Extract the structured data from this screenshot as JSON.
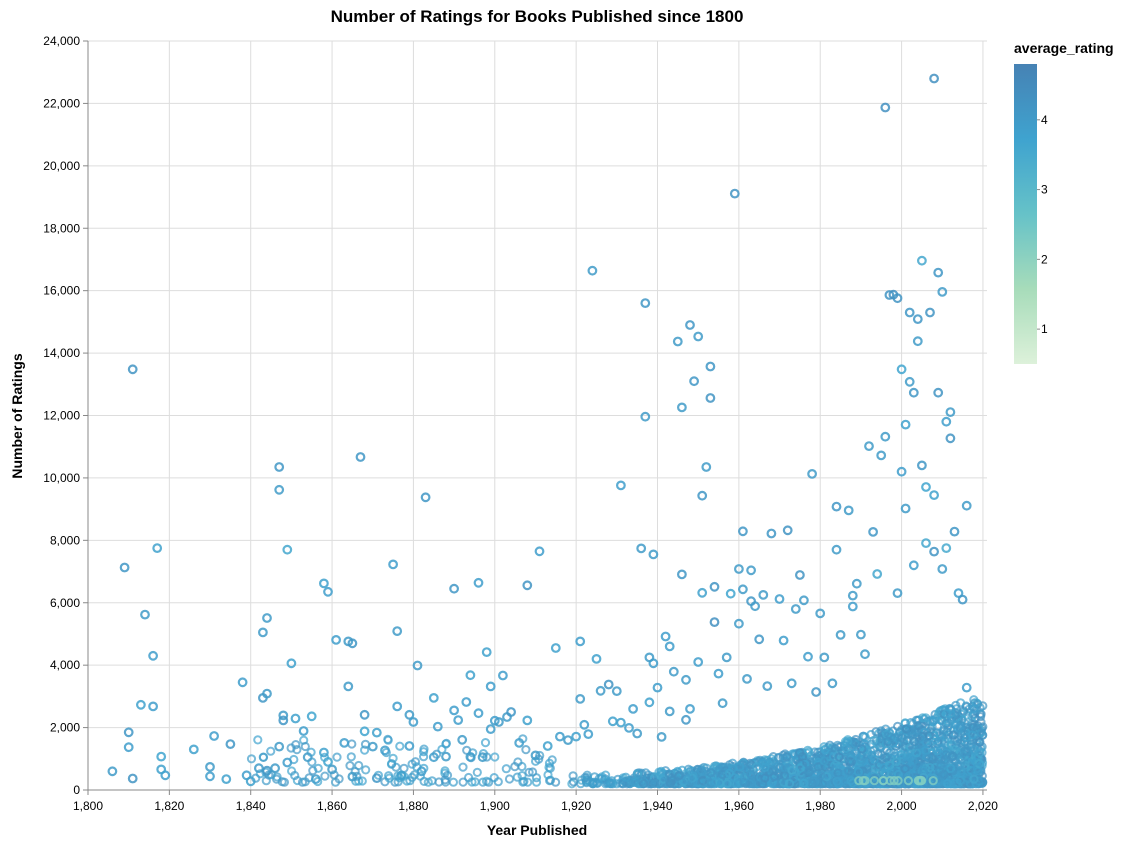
{
  "chart_data": {
    "type": "scatter",
    "title": "Number of Ratings for Books Published since 1800",
    "xlabel": "Year Published",
    "ylabel": "Number of Ratings",
    "xlim": [
      1800,
      2021
    ],
    "ylim": [
      0,
      24000
    ],
    "x_ticks": [
      1800,
      1820,
      1840,
      1860,
      1880,
      1900,
      1920,
      1940,
      1960,
      1980,
      2000,
      2020
    ],
    "x_tick_labels": [
      "1,800",
      "1,820",
      "1,840",
      "1,860",
      "1,880",
      "1,900",
      "1,920",
      "1,940",
      "1,960",
      "1,980",
      "2,000",
      "2,020"
    ],
    "y_ticks": [
      0,
      2000,
      4000,
      6000,
      8000,
      10000,
      12000,
      14000,
      16000,
      18000,
      20000,
      22000,
      24000
    ],
    "y_tick_labels": [
      "0",
      "2,000",
      "4,000",
      "6,000",
      "8,000",
      "10,000",
      "12,000",
      "14,000",
      "16,000",
      "18,000",
      "20,000",
      "22,000",
      "24,000"
    ],
    "grid": true,
    "marker": "hollow-circle",
    "color_field": "average_rating",
    "legend": {
      "title": "average_rating",
      "placement": "right",
      "domain": [
        0.5,
        4.8
      ],
      "ticks": [
        1,
        2,
        3,
        4
      ],
      "tick_labels": [
        "1",
        "2",
        "3",
        "4"
      ],
      "colors": [
        "#ddf1da",
        "#a7dcba",
        "#66c2c8",
        "#3fa3cf",
        "#4682b4"
      ]
    },
    "points": [
      {
        "x": 1806,
        "y": 600,
        "c": 4.0
      },
      {
        "x": 1809,
        "y": 7130,
        "c": 4.1
      },
      {
        "x": 1810,
        "y": 1850,
        "c": 4.1
      },
      {
        "x": 1810,
        "y": 1370,
        "c": 3.9
      },
      {
        "x": 1811,
        "y": 370,
        "c": 4.2
      },
      {
        "x": 1811,
        "y": 13480,
        "c": 4.2
      },
      {
        "x": 1813,
        "y": 2730,
        "c": 3.8
      },
      {
        "x": 1814,
        "y": 5620,
        "c": 4.0
      },
      {
        "x": 1816,
        "y": 4300,
        "c": 3.9
      },
      {
        "x": 1816,
        "y": 2680,
        "c": 3.9
      },
      {
        "x": 1817,
        "y": 7750,
        "c": 3.8
      },
      {
        "x": 1818,
        "y": 1070,
        "c": 3.7
      },
      {
        "x": 1819,
        "y": 470,
        "c": 3.9
      },
      {
        "x": 1818,
        "y": 660,
        "c": 3.8
      },
      {
        "x": 1826,
        "y": 1300,
        "c": 3.8
      },
      {
        "x": 1830,
        "y": 440,
        "c": 3.9
      },
      {
        "x": 1831,
        "y": 1730,
        "c": 3.9
      },
      {
        "x": 1830,
        "y": 740,
        "c": 4.0
      },
      {
        "x": 1834,
        "y": 350,
        "c": 3.8
      },
      {
        "x": 1835,
        "y": 1470,
        "c": 4.1
      },
      {
        "x": 1838,
        "y": 3450,
        "c": 3.9
      },
      {
        "x": 1839,
        "y": 470,
        "c": 3.9
      },
      {
        "x": 1840,
        "y": 280,
        "c": 3.8
      },
      {
        "x": 1842,
        "y": 700,
        "c": 4.0
      },
      {
        "x": 1843,
        "y": 5050,
        "c": 4.0
      },
      {
        "x": 1843,
        "y": 2950,
        "c": 4.1
      },
      {
        "x": 1844,
        "y": 3090,
        "c": 4.0
      },
      {
        "x": 1844,
        "y": 5510,
        "c": 4.0
      },
      {
        "x": 1844,
        "y": 620,
        "c": 4.1
      },
      {
        "x": 1846,
        "y": 700,
        "c": 4.0
      },
      {
        "x": 1847,
        "y": 9620,
        "c": 4.0
      },
      {
        "x": 1847,
        "y": 10350,
        "c": 4.1
      },
      {
        "x": 1847,
        "y": 1390,
        "c": 4.0
      },
      {
        "x": 1848,
        "y": 2390,
        "c": 4.0
      },
      {
        "x": 1848,
        "y": 2230,
        "c": 4.1
      },
      {
        "x": 1849,
        "y": 7700,
        "c": 3.6
      },
      {
        "x": 1849,
        "y": 880,
        "c": 3.9
      },
      {
        "x": 1850,
        "y": 4060,
        "c": 3.8
      },
      {
        "x": 1851,
        "y": 2290,
        "c": 3.8
      },
      {
        "x": 1853,
        "y": 1890,
        "c": 3.9
      },
      {
        "x": 1854,
        "y": 1050,
        "c": 4.0
      },
      {
        "x": 1855,
        "y": 2360,
        "c": 3.7
      },
      {
        "x": 1856,
        "y": 350,
        "c": 3.9
      },
      {
        "x": 1858,
        "y": 1200,
        "c": 3.8
      },
      {
        "x": 1858,
        "y": 6620,
        "c": 3.8
      },
      {
        "x": 1859,
        "y": 6350,
        "c": 3.9
      },
      {
        "x": 1859,
        "y": 900,
        "c": 3.7
      },
      {
        "x": 1860,
        "y": 660,
        "c": 4.0
      },
      {
        "x": 1861,
        "y": 4810,
        "c": 3.9
      },
      {
        "x": 1863,
        "y": 1510,
        "c": 3.9
      },
      {
        "x": 1864,
        "y": 4760,
        "c": 4.0
      },
      {
        "x": 1864,
        "y": 3320,
        "c": 4.0
      },
      {
        "x": 1865,
        "y": 4700,
        "c": 4.1
      },
      {
        "x": 1865,
        "y": 430,
        "c": 4.0
      },
      {
        "x": 1867,
        "y": 10670,
        "c": 4.1
      },
      {
        "x": 1868,
        "y": 2410,
        "c": 4.1
      },
      {
        "x": 1868,
        "y": 1880,
        "c": 3.7
      },
      {
        "x": 1870,
        "y": 1390,
        "c": 4.0
      },
      {
        "x": 1871,
        "y": 1840,
        "c": 3.8
      },
      {
        "x": 1871,
        "y": 380,
        "c": 4.1
      },
      {
        "x": 1873,
        "y": 1270,
        "c": 3.9
      },
      {
        "x": 1875,
        "y": 7230,
        "c": 3.9
      },
      {
        "x": 1876,
        "y": 5090,
        "c": 4.0
      },
      {
        "x": 1876,
        "y": 2680,
        "c": 3.9
      },
      {
        "x": 1877,
        "y": 460,
        "c": 3.8
      },
      {
        "x": 1879,
        "y": 2410,
        "c": 4.0
      },
      {
        "x": 1879,
        "y": 1410,
        "c": 3.9
      },
      {
        "x": 1880,
        "y": 2180,
        "c": 3.9
      },
      {
        "x": 1881,
        "y": 3990,
        "c": 4.0
      },
      {
        "x": 1882,
        "y": 600,
        "c": 3.9
      },
      {
        "x": 1883,
        "y": 9380,
        "c": 4.1
      },
      {
        "x": 1885,
        "y": 2950,
        "c": 3.8
      },
      {
        "x": 1885,
        "y": 1050,
        "c": 3.9
      },
      {
        "x": 1886,
        "y": 2030,
        "c": 3.9
      },
      {
        "x": 1888,
        "y": 1070,
        "c": 4.0
      },
      {
        "x": 1890,
        "y": 2550,
        "c": 3.9
      },
      {
        "x": 1890,
        "y": 6450,
        "c": 4.1
      },
      {
        "x": 1891,
        "y": 2240,
        "c": 3.9
      },
      {
        "x": 1892,
        "y": 1610,
        "c": 4.0
      },
      {
        "x": 1893,
        "y": 2820,
        "c": 3.9
      },
      {
        "x": 1894,
        "y": 1060,
        "c": 3.9
      },
      {
        "x": 1894,
        "y": 3680,
        "c": 3.8
      },
      {
        "x": 1896,
        "y": 6640,
        "c": 3.9
      },
      {
        "x": 1896,
        "y": 2460,
        "c": 3.9
      },
      {
        "x": 1897,
        "y": 1050,
        "c": 4.0
      },
      {
        "x": 1898,
        "y": 4420,
        "c": 3.8
      },
      {
        "x": 1899,
        "y": 3320,
        "c": 3.9
      },
      {
        "x": 1899,
        "y": 1950,
        "c": 3.9
      },
      {
        "x": 1900,
        "y": 2220,
        "c": 3.9
      },
      {
        "x": 1901,
        "y": 2180,
        "c": 4.0
      },
      {
        "x": 1902,
        "y": 3670,
        "c": 3.9
      },
      {
        "x": 1903,
        "y": 2340,
        "c": 4.0
      },
      {
        "x": 1904,
        "y": 2500,
        "c": 4.1
      },
      {
        "x": 1906,
        "y": 1510,
        "c": 3.9
      },
      {
        "x": 1908,
        "y": 6560,
        "c": 4.2
      },
      {
        "x": 1908,
        "y": 2230,
        "c": 3.8
      },
      {
        "x": 1910,
        "y": 1110,
        "c": 4.0
      },
      {
        "x": 1911,
        "y": 7650,
        "c": 3.9
      },
      {
        "x": 1913,
        "y": 1410,
        "c": 3.8
      },
      {
        "x": 1915,
        "y": 4550,
        "c": 3.8
      },
      {
        "x": 1916,
        "y": 1710,
        "c": 3.9
      },
      {
        "x": 1918,
        "y": 1600,
        "c": 4.0
      },
      {
        "x": 1920,
        "y": 1710,
        "c": 3.8
      },
      {
        "x": 1921,
        "y": 2920,
        "c": 4.0
      },
      {
        "x": 1921,
        "y": 4760,
        "c": 3.9
      },
      {
        "x": 1922,
        "y": 2090,
        "c": 3.9
      },
      {
        "x": 1923,
        "y": 1790,
        "c": 3.9
      },
      {
        "x": 1924,
        "y": 16640,
        "c": 4.0
      },
      {
        "x": 1925,
        "y": 4200,
        "c": 3.8
      },
      {
        "x": 1926,
        "y": 3180,
        "c": 4.0
      },
      {
        "x": 1928,
        "y": 3380,
        "c": 4.2
      },
      {
        "x": 1929,
        "y": 2200,
        "c": 3.8
      },
      {
        "x": 1930,
        "y": 3170,
        "c": 4.0
      },
      {
        "x": 1931,
        "y": 9760,
        "c": 3.9
      },
      {
        "x": 1931,
        "y": 2160,
        "c": 3.8
      },
      {
        "x": 1933,
        "y": 1990,
        "c": 3.9
      },
      {
        "x": 1934,
        "y": 2600,
        "c": 3.9
      },
      {
        "x": 1935,
        "y": 1810,
        "c": 4.0
      },
      {
        "x": 1936,
        "y": 7740,
        "c": 4.0
      },
      {
        "x": 1937,
        "y": 15600,
        "c": 4.1
      },
      {
        "x": 1937,
        "y": 11960,
        "c": 4.0
      },
      {
        "x": 1938,
        "y": 4250,
        "c": 4.0
      },
      {
        "x": 1938,
        "y": 2810,
        "c": 3.8
      },
      {
        "x": 1939,
        "y": 7550,
        "c": 4.0
      },
      {
        "x": 1939,
        "y": 4060,
        "c": 3.9
      },
      {
        "x": 1940,
        "y": 3280,
        "c": 3.9
      },
      {
        "x": 1941,
        "y": 1700,
        "c": 4.0
      },
      {
        "x": 1942,
        "y": 4920,
        "c": 3.9
      },
      {
        "x": 1943,
        "y": 4600,
        "c": 3.9
      },
      {
        "x": 1943,
        "y": 2520,
        "c": 4.0
      },
      {
        "x": 1944,
        "y": 3790,
        "c": 4.0
      },
      {
        "x": 1945,
        "y": 14370,
        "c": 4.0
      },
      {
        "x": 1946,
        "y": 6910,
        "c": 4.1
      },
      {
        "x": 1946,
        "y": 12260,
        "c": 4.0
      },
      {
        "x": 1947,
        "y": 3530,
        "c": 4.0
      },
      {
        "x": 1947,
        "y": 2250,
        "c": 4.1
      },
      {
        "x": 1948,
        "y": 14900,
        "c": 4.1
      },
      {
        "x": 1948,
        "y": 2600,
        "c": 3.9
      },
      {
        "x": 1949,
        "y": 13100,
        "c": 4.1
      },
      {
        "x": 1950,
        "y": 14530,
        "c": 4.0
      },
      {
        "x": 1950,
        "y": 4100,
        "c": 3.9
      },
      {
        "x": 1951,
        "y": 9430,
        "c": 4.1
      },
      {
        "x": 1951,
        "y": 6320,
        "c": 3.8
      },
      {
        "x": 1952,
        "y": 10350,
        "c": 4.0
      },
      {
        "x": 1953,
        "y": 13570,
        "c": 4.1
      },
      {
        "x": 1953,
        "y": 12560,
        "c": 4.2
      },
      {
        "x": 1954,
        "y": 6510,
        "c": 4.2
      },
      {
        "x": 1954,
        "y": 5380,
        "c": 4.3
      },
      {
        "x": 1955,
        "y": 3730,
        "c": 3.9
      },
      {
        "x": 1956,
        "y": 2780,
        "c": 4.0
      },
      {
        "x": 1957,
        "y": 4250,
        "c": 4.0
      },
      {
        "x": 1958,
        "y": 6290,
        "c": 3.7
      },
      {
        "x": 1959,
        "y": 19110,
        "c": 4.2
      },
      {
        "x": 1960,
        "y": 7080,
        "c": 4.0
      },
      {
        "x": 1960,
        "y": 5330,
        "c": 4.0
      },
      {
        "x": 1961,
        "y": 8290,
        "c": 4.1
      },
      {
        "x": 1961,
        "y": 6430,
        "c": 4.0
      },
      {
        "x": 1962,
        "y": 3560,
        "c": 4.0
      },
      {
        "x": 1963,
        "y": 7040,
        "c": 4.0
      },
      {
        "x": 1963,
        "y": 6050,
        "c": 4.1
      },
      {
        "x": 1964,
        "y": 5890,
        "c": 4.0
      },
      {
        "x": 1965,
        "y": 4830,
        "c": 4.1
      },
      {
        "x": 1966,
        "y": 6250,
        "c": 4.0
      },
      {
        "x": 1967,
        "y": 3330,
        "c": 4.0
      },
      {
        "x": 1968,
        "y": 8220,
        "c": 4.1
      },
      {
        "x": 1970,
        "y": 6120,
        "c": 3.9
      },
      {
        "x": 1971,
        "y": 4790,
        "c": 3.9
      },
      {
        "x": 1972,
        "y": 8320,
        "c": 4.2
      },
      {
        "x": 1973,
        "y": 3420,
        "c": 4.0
      },
      {
        "x": 1974,
        "y": 5800,
        "c": 4.0
      },
      {
        "x": 1975,
        "y": 6890,
        "c": 4.2
      },
      {
        "x": 1976,
        "y": 6080,
        "c": 4.0
      },
      {
        "x": 1977,
        "y": 4270,
        "c": 3.9
      },
      {
        "x": 1978,
        "y": 10130,
        "c": 4.0
      },
      {
        "x": 1979,
        "y": 3140,
        "c": 4.1
      },
      {
        "x": 1980,
        "y": 5660,
        "c": 4.0
      },
      {
        "x": 1981,
        "y": 4250,
        "c": 4.0
      },
      {
        "x": 1983,
        "y": 3420,
        "c": 4.0
      },
      {
        "x": 1984,
        "y": 9080,
        "c": 4.1
      },
      {
        "x": 1984,
        "y": 7700,
        "c": 4.0
      },
      {
        "x": 1985,
        "y": 4970,
        "c": 4.0
      },
      {
        "x": 1987,
        "y": 8960,
        "c": 4.0
      },
      {
        "x": 1988,
        "y": 6230,
        "c": 4.0
      },
      {
        "x": 1988,
        "y": 5880,
        "c": 3.9
      },
      {
        "x": 1989,
        "y": 6610,
        "c": 4.0
      },
      {
        "x": 1990,
        "y": 4980,
        "c": 4.0
      },
      {
        "x": 1991,
        "y": 4350,
        "c": 4.0
      },
      {
        "x": 1992,
        "y": 11020,
        "c": 4.0
      },
      {
        "x": 1993,
        "y": 8270,
        "c": 4.1
      },
      {
        "x": 1994,
        "y": 6920,
        "c": 3.6
      },
      {
        "x": 1995,
        "y": 10720,
        "c": 4.0
      },
      {
        "x": 1996,
        "y": 11320,
        "c": 4.0
      },
      {
        "x": 1996,
        "y": 21870,
        "c": 4.3
      },
      {
        "x": 1997,
        "y": 15860,
        "c": 4.2
      },
      {
        "x": 1998,
        "y": 15870,
        "c": 4.3
      },
      {
        "x": 1999,
        "y": 15760,
        "c": 4.2
      },
      {
        "x": 1999,
        "y": 6310,
        "c": 4.0
      },
      {
        "x": 2000,
        "y": 13480,
        "c": 3.7
      },
      {
        "x": 2000,
        "y": 10200,
        "c": 3.9
      },
      {
        "x": 2001,
        "y": 11710,
        "c": 3.8
      },
      {
        "x": 2001,
        "y": 9020,
        "c": 4.0
      },
      {
        "x": 2002,
        "y": 15300,
        "c": 4.1
      },
      {
        "x": 2002,
        "y": 13080,
        "c": 4.0
      },
      {
        "x": 2003,
        "y": 12730,
        "c": 4.1
      },
      {
        "x": 2004,
        "y": 15090,
        "c": 4.1
      },
      {
        "x": 2004,
        "y": 14380,
        "c": 4.0
      },
      {
        "x": 2005,
        "y": 16960,
        "c": 3.6
      },
      {
        "x": 2005,
        "y": 10400,
        "c": 4.1
      },
      {
        "x": 2006,
        "y": 9710,
        "c": 3.7
      },
      {
        "x": 2006,
        "y": 7910,
        "c": 3.6
      },
      {
        "x": 2007,
        "y": 15300,
        "c": 4.2
      },
      {
        "x": 2008,
        "y": 22800,
        "c": 4.3
      },
      {
        "x": 2008,
        "y": 9450,
        "c": 3.8
      },
      {
        "x": 2009,
        "y": 16580,
        "c": 4.1
      },
      {
        "x": 2009,
        "y": 12730,
        "c": 4.2
      },
      {
        "x": 2010,
        "y": 15960,
        "c": 4.0
      },
      {
        "x": 2011,
        "y": 11800,
        "c": 3.9
      },
      {
        "x": 2011,
        "y": 7750,
        "c": 3.5
      },
      {
        "x": 2012,
        "y": 12110,
        "c": 4.0
      },
      {
        "x": 2012,
        "y": 11270,
        "c": 4.2
      },
      {
        "x": 2013,
        "y": 8280,
        "c": 4.1
      },
      {
        "x": 2014,
        "y": 6310,
        "c": 3.9
      },
      {
        "x": 2016,
        "y": 9110,
        "c": 4.0
      },
      {
        "x": 2016,
        "y": 3280,
        "c": 3.9
      },
      {
        "x": 2015,
        "y": 6100,
        "c": 4.1
      },
      {
        "x": 2010,
        "y": 7080,
        "c": 4.0
      },
      {
        "x": 2008,
        "y": 7640,
        "c": 4.2
      },
      {
        "x": 2003,
        "y": 7200,
        "c": 3.9
      }
    ]
  }
}
